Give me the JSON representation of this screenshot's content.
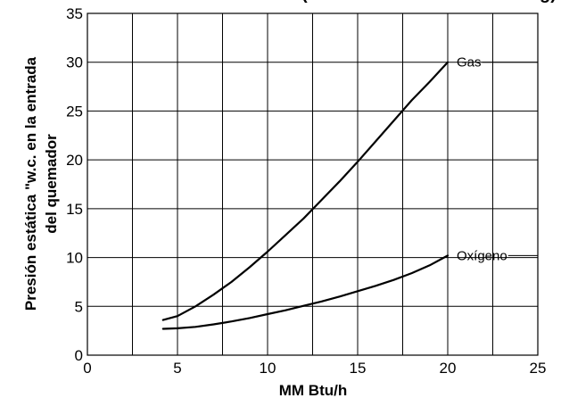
{
  "chart_data": {
    "type": "line",
    "title": "(",
    "title_right": "g)",
    "xlabel": "MM Btu/h",
    "ylabel_lines": [
      "Presión estática \"w.c. en la entrada",
      "del quemador"
    ],
    "xlim": [
      0,
      25
    ],
    "ylim": [
      0,
      35
    ],
    "xticks": [
      0,
      5,
      10,
      15,
      20,
      25
    ],
    "yticks": [
      0,
      5,
      10,
      15,
      20,
      25,
      30,
      35
    ],
    "xtick_labels": [
      "0",
      "5",
      "10",
      "15",
      "20",
      "25"
    ],
    "ytick_labels": [
      "0",
      "5",
      "10",
      "15",
      "20",
      "25",
      "30",
      "35"
    ],
    "grid": true,
    "series": [
      {
        "name": "Gas",
        "x": [
          4.2,
          5.0,
          6.0,
          7.0,
          8.0,
          9.0,
          10.0,
          11.0,
          12.0,
          13.0,
          14.0,
          15.0,
          16.0,
          17.0,
          18.0,
          19.0,
          20.0
        ],
        "y": [
          3.6,
          4.0,
          5.0,
          6.2,
          7.5,
          9.0,
          10.6,
          12.3,
          14.0,
          15.9,
          17.8,
          19.8,
          21.9,
          24.0,
          26.1,
          28.0,
          30.0
        ]
      },
      {
        "name": "Oxígeno",
        "x": [
          4.2,
          5.0,
          6.0,
          7.0,
          8.0,
          9.0,
          10.0,
          11.0,
          12.0,
          13.0,
          14.0,
          15.0,
          16.0,
          17.0,
          18.0,
          19.0,
          20.0
        ],
        "y": [
          2.7,
          2.75,
          2.9,
          3.15,
          3.45,
          3.8,
          4.2,
          4.6,
          5.05,
          5.5,
          6.0,
          6.55,
          7.1,
          7.7,
          8.4,
          9.2,
          10.2
        ]
      }
    ]
  }
}
